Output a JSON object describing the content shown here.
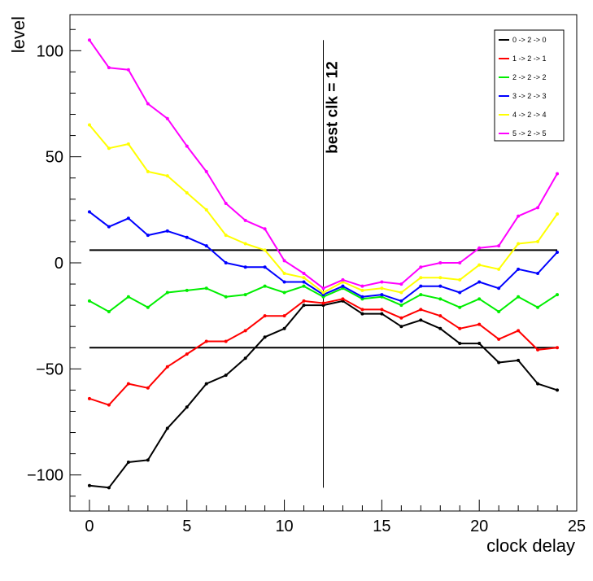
{
  "chart_data": {
    "type": "line",
    "title": "",
    "xlabel": "clock delay",
    "ylabel": "level",
    "xlim": [
      -1,
      25
    ],
    "ylim": [
      -117,
      117
    ],
    "x_ticks": [
      0,
      5,
      10,
      15,
      20,
      25
    ],
    "y_ticks": [
      -100,
      -50,
      0,
      50,
      100
    ],
    "x_tick_labels": [
      "0",
      "5",
      "10",
      "15",
      "20",
      "25"
    ],
    "y_tick_labels": [
      "−100",
      "−50",
      "0",
      "50",
      "100"
    ],
    "grid": false,
    "legend_position": "top-right",
    "x": [
      0,
      1,
      2,
      3,
      4,
      5,
      6,
      7,
      8,
      9,
      10,
      11,
      12,
      13,
      14,
      15,
      16,
      17,
      18,
      19,
      20,
      21,
      22,
      23,
      24
    ],
    "series": [
      {
        "name": "0 -> 2 -> 0",
        "color": "#000000",
        "values": [
          -105,
          -106,
          -94,
          -93,
          -78,
          -68,
          -57,
          -53,
          -45,
          -35,
          -31,
          -20,
          -20,
          -18,
          -24,
          -24,
          -30,
          -27,
          -31,
          -38,
          -38,
          -47,
          -46,
          -57,
          -60
        ]
      },
      {
        "name": "1 -> 2 -> 1",
        "color": "#ff0000",
        "values": [
          -64,
          -67,
          -57,
          -59,
          -49,
          -43,
          -37,
          -37,
          -32,
          -25,
          -25,
          -18,
          -19,
          -17,
          -22,
          -22,
          -26,
          -22,
          -25,
          -31,
          -29,
          -36,
          -32,
          -41,
          -40
        ]
      },
      {
        "name": "2 -> 2 -> 2",
        "color": "#00ee00",
        "values": [
          -18,
          -23,
          -16,
          -21,
          -14,
          -13,
          -12,
          -16,
          -15,
          -11,
          -14,
          -11,
          -16,
          -12,
          -17,
          -16,
          -20,
          -15,
          -17,
          -21,
          -17,
          -23,
          -16,
          -21,
          -15
        ]
      },
      {
        "name": "3 -> 2 -> 3",
        "color": "#0000ff",
        "values": [
          24,
          17,
          21,
          13,
          15,
          12,
          8,
          0,
          -2,
          -2,
          -9,
          -9,
          -15,
          -11,
          -16,
          -15,
          -18,
          -11,
          -11,
          -14,
          -9,
          -12,
          -3,
          -5,
          5
        ]
      },
      {
        "name": "4 -> 2 -> 4",
        "color": "#ffff00",
        "values": [
          65,
          54,
          56,
          43,
          41,
          33,
          25,
          13,
          9,
          6,
          -5,
          -7,
          -14,
          -9,
          -13,
          -12,
          -14,
          -7,
          -7,
          -8,
          -1,
          -3,
          9,
          10,
          23
        ]
      },
      {
        "name": "5 -> 2 -> 5",
        "color": "#ff00ff",
        "values": [
          105,
          92,
          91,
          75,
          68,
          55,
          43,
          28,
          20,
          16,
          1,
          -5,
          -12,
          -8,
          -11,
          -9,
          -10,
          -2,
          0,
          0,
          7,
          8,
          22,
          26,
          42
        ]
      }
    ],
    "reference_lines": [
      {
        "orientation": "horizontal",
        "value": 6,
        "x_range": [
          0,
          24
        ]
      },
      {
        "orientation": "horizontal",
        "value": -40,
        "x_range": [
          0,
          24
        ]
      },
      {
        "orientation": "vertical",
        "value": 12,
        "y_range": [
          -106,
          105
        ]
      }
    ],
    "annotations": [
      {
        "text": "best clk = 12",
        "x": 12,
        "y": 105,
        "rotation": -90
      }
    ]
  }
}
